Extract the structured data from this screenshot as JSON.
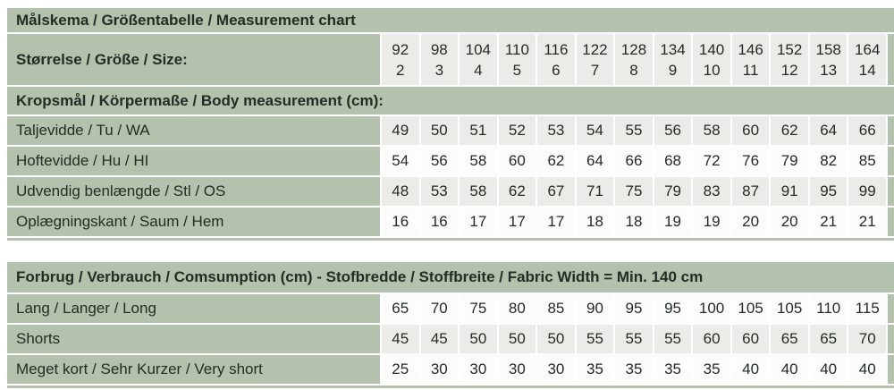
{
  "colors": {
    "green": "#b4c1ad",
    "cell_light": "#ebebe8",
    "cell_white": "#fcfcfb",
    "text_dark": "#252b25",
    "page_bg": "#ffffff"
  },
  "measurement_table": {
    "title": "Målskema / Größentabelle / Measurement chart",
    "size_header": {
      "label": "Størrelse / Größe / Size:",
      "sizes": [
        {
          "cm": "92",
          "age": "2"
        },
        {
          "cm": "98",
          "age": "3"
        },
        {
          "cm": "104",
          "age": "4"
        },
        {
          "cm": "110",
          "age": "5"
        },
        {
          "cm": "116",
          "age": "6"
        },
        {
          "cm": "122",
          "age": "7"
        },
        {
          "cm": "128",
          "age": "8"
        },
        {
          "cm": "134",
          "age": "9"
        },
        {
          "cm": "140",
          "age": "10"
        },
        {
          "cm": "146",
          "age": "11"
        },
        {
          "cm": "152",
          "age": "12"
        },
        {
          "cm": "158",
          "age": "13"
        },
        {
          "cm": "164",
          "age": "14"
        }
      ]
    },
    "body_section": {
      "header": "Kropsmål / Körpermaße / Body measurement (cm):",
      "rows": [
        {
          "label": "Taljevidde / Tu / WA",
          "shade": "light",
          "values": [
            "49",
            "50",
            "51",
            "52",
            "53",
            "54",
            "55",
            "56",
            "58",
            "60",
            "62",
            "64",
            "66"
          ]
        },
        {
          "label": "Hoftevidde / Hu / HI",
          "shade": "white",
          "values": [
            "54",
            "56",
            "58",
            "60",
            "62",
            "64",
            "66",
            "68",
            "72",
            "76",
            "79",
            "82",
            "85"
          ]
        },
        {
          "label": "Udvendig benlængde / Stl / OS",
          "shade": "light",
          "values": [
            "48",
            "53",
            "58",
            "62",
            "67",
            "71",
            "75",
            "79",
            "83",
            "87",
            "91",
            "95",
            "99"
          ]
        },
        {
          "label": "Oplægningskant / Saum / Hem",
          "shade": "white",
          "values": [
            "16",
            "16",
            "17",
            "17",
            "17",
            "18",
            "18",
            "19",
            "19",
            "20",
            "20",
            "21",
            "21"
          ]
        }
      ]
    },
    "consumption_section": {
      "header": "Forbrug / Verbrauch / Comsumption (cm) - Stofbredde / Stoffbreite / Fabric Width = Min. 140 cm",
      "rows": [
        {
          "label": "Lang / Langer / Long",
          "shade": "white",
          "values": [
            "65",
            "70",
            "75",
            "80",
            "85",
            "90",
            "95",
            "95",
            "100",
            "105",
            "105",
            "110",
            "115"
          ]
        },
        {
          "label": "Shorts",
          "shade": "light",
          "values": [
            "45",
            "45",
            "50",
            "50",
            "50",
            "55",
            "55",
            "55",
            "60",
            "60",
            "65",
            "65",
            "70"
          ]
        },
        {
          "label": "Meget kort / Sehr Kurzer / Very short",
          "shade": "white",
          "values": [
            "25",
            "30",
            "30",
            "30",
            "30",
            "35",
            "35",
            "35",
            "35",
            "40",
            "40",
            "40",
            "40"
          ]
        }
      ]
    }
  }
}
